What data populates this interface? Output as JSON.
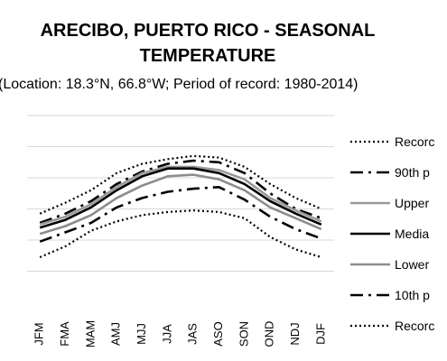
{
  "chart_data": {
    "type": "line",
    "title_line1": "ARECIBO, PUERTO RICO - SEASONAL",
    "title_line2": "TEMPERATURE",
    "subtitle": "(Location: 18.3°N, 66.8°W; Period of record: 1980-2014)",
    "categories": [
      "JFM",
      "FMA",
      "MAM",
      "AMJ",
      "MJJ",
      "JJA",
      "JAS",
      "ASO",
      "SON",
      "OND",
      "NDJ",
      "DJF"
    ],
    "y_gridlines": 6,
    "grid": true,
    "legend_position": "right",
    "series": [
      {
        "name": "Record",
        "display_name": "Recorc",
        "color": "#000000",
        "style": "dotted",
        "values": [
          2.85,
          3.2,
          3.6,
          4.15,
          4.45,
          4.6,
          4.7,
          4.65,
          4.35,
          3.8,
          3.35,
          3.0
        ]
      },
      {
        "name": "90th p",
        "display_name": "90th p",
        "color": "#000000",
        "style": "dashdot",
        "values": [
          2.55,
          2.85,
          3.25,
          3.8,
          4.2,
          4.45,
          4.55,
          4.5,
          4.15,
          3.5,
          3.0,
          2.7
        ]
      },
      {
        "name": "Upper",
        "display_name": "Upper",
        "color": "#999999",
        "style": "solid",
        "values": [
          2.5,
          2.75,
          3.15,
          3.7,
          4.15,
          4.35,
          4.35,
          4.25,
          3.95,
          3.35,
          2.95,
          2.6
        ]
      },
      {
        "name": "Media",
        "display_name": "Media",
        "color": "#000000",
        "style": "solid",
        "values": [
          2.4,
          2.65,
          3.05,
          3.6,
          4.05,
          4.3,
          4.3,
          4.15,
          3.8,
          3.25,
          2.85,
          2.5
        ]
      },
      {
        "name": "Lower",
        "display_name": "Lower",
        "color": "#8c8c8c",
        "style": "solid",
        "values": [
          2.2,
          2.45,
          2.8,
          3.35,
          3.75,
          4.05,
          4.1,
          3.95,
          3.6,
          3.05,
          2.7,
          2.35
        ]
      },
      {
        "name": "10th p",
        "display_name": "10th p",
        "color": "#000000",
        "style": "dashdot",
        "values": [
          1.95,
          2.25,
          2.55,
          3.05,
          3.35,
          3.55,
          3.65,
          3.7,
          3.3,
          2.75,
          2.35,
          2.05
        ]
      },
      {
        "name": "Record",
        "display_name": "Recorc",
        "color": "#000000",
        "style": "dotted",
        "values": [
          1.45,
          1.8,
          2.3,
          2.6,
          2.8,
          2.9,
          2.95,
          2.9,
          2.7,
          2.1,
          1.7,
          1.45
        ]
      }
    ]
  }
}
